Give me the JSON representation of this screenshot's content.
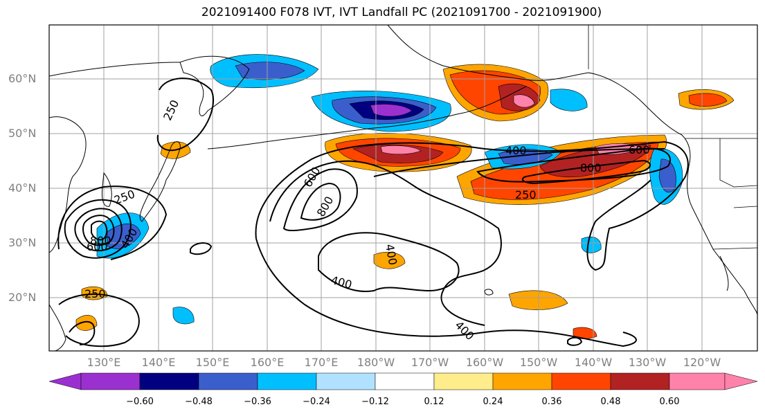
{
  "title": "2021091400 F078 IVT, IVT Landfall PC (2021091700 - 2021091900)",
  "lat_labels": [
    "60°N",
    "50°N",
    "40°N",
    "30°N",
    "20°N"
  ],
  "lon_labels": [
    "130°E",
    "140°E",
    "150°E",
    "160°E",
    "170°E",
    "180°W",
    "170°W",
    "160°W",
    "150°W",
    "140°W",
    "130°W",
    "120°W"
  ],
  "colorbar": {
    "tick_labels": [
      "−0.60",
      "−0.48",
      "−0.36",
      "−0.24",
      "−0.12",
      "0.12",
      "0.24",
      "0.36",
      "0.48",
      "0.60"
    ],
    "colors": [
      "#9b30d0",
      "#000080",
      "#3a5fcd",
      "#00bfff",
      "#b0e2ff",
      "#ffffff",
      "#ffec8b",
      "#ffa500",
      "#ff4500",
      "#b22222",
      "#ff82ab"
    ]
  },
  "contour_labels": [
    "400",
    "600",
    "800",
    "250",
    "600",
    "800",
    "800",
    "600",
    "250",
    "400",
    "400",
    "250",
    "400",
    "250"
  ],
  "map": {
    "projection": "cylindrical",
    "extent": "118°E–110°W, 10°N–70°N",
    "gridlines": true,
    "contour_color": "#000000"
  }
}
